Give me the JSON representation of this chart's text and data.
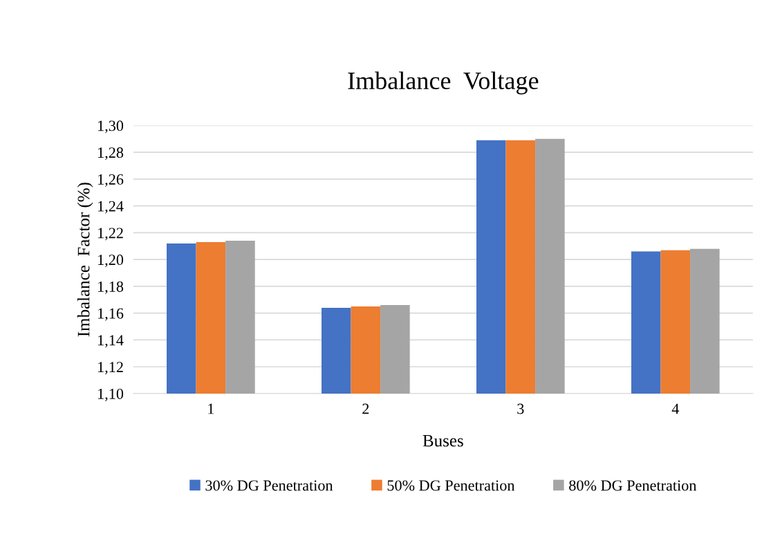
{
  "chart_data": {
    "type": "bar",
    "title": "Imbalance  Voltage",
    "xlabel": "Buses",
    "ylabel": "Imbalance  Factor (%)",
    "categories": [
      "1",
      "2",
      "3",
      "4"
    ],
    "series": [
      {
        "name": "30% DG Penetration",
        "color": "#4472c4",
        "values": [
          1.212,
          1.164,
          1.289,
          1.206
        ]
      },
      {
        "name": "50% DG Penetration",
        "color": "#ed7d31",
        "values": [
          1.213,
          1.165,
          1.289,
          1.207
        ]
      },
      {
        "name": "80% DG Penetration",
        "color": "#a5a5a5",
        "values": [
          1.214,
          1.166,
          1.29,
          1.208
        ]
      }
    ],
    "ylim": [
      1.1,
      1.3
    ],
    "yticks": [
      {
        "value": 1.1,
        "label": "1,10"
      },
      {
        "value": 1.12,
        "label": "1,12"
      },
      {
        "value": 1.14,
        "label": "1,14"
      },
      {
        "value": 1.16,
        "label": "1,16"
      },
      {
        "value": 1.18,
        "label": "1,18"
      },
      {
        "value": 1.2,
        "label": "1,20"
      },
      {
        "value": 1.22,
        "label": "1,22"
      },
      {
        "value": 1.24,
        "label": "1,24"
      },
      {
        "value": 1.26,
        "label": "1,26"
      },
      {
        "value": 1.28,
        "label": "1,28"
      },
      {
        "value": 1.3,
        "label": "1,30"
      }
    ],
    "grid": "y",
    "legend": "bottom"
  }
}
